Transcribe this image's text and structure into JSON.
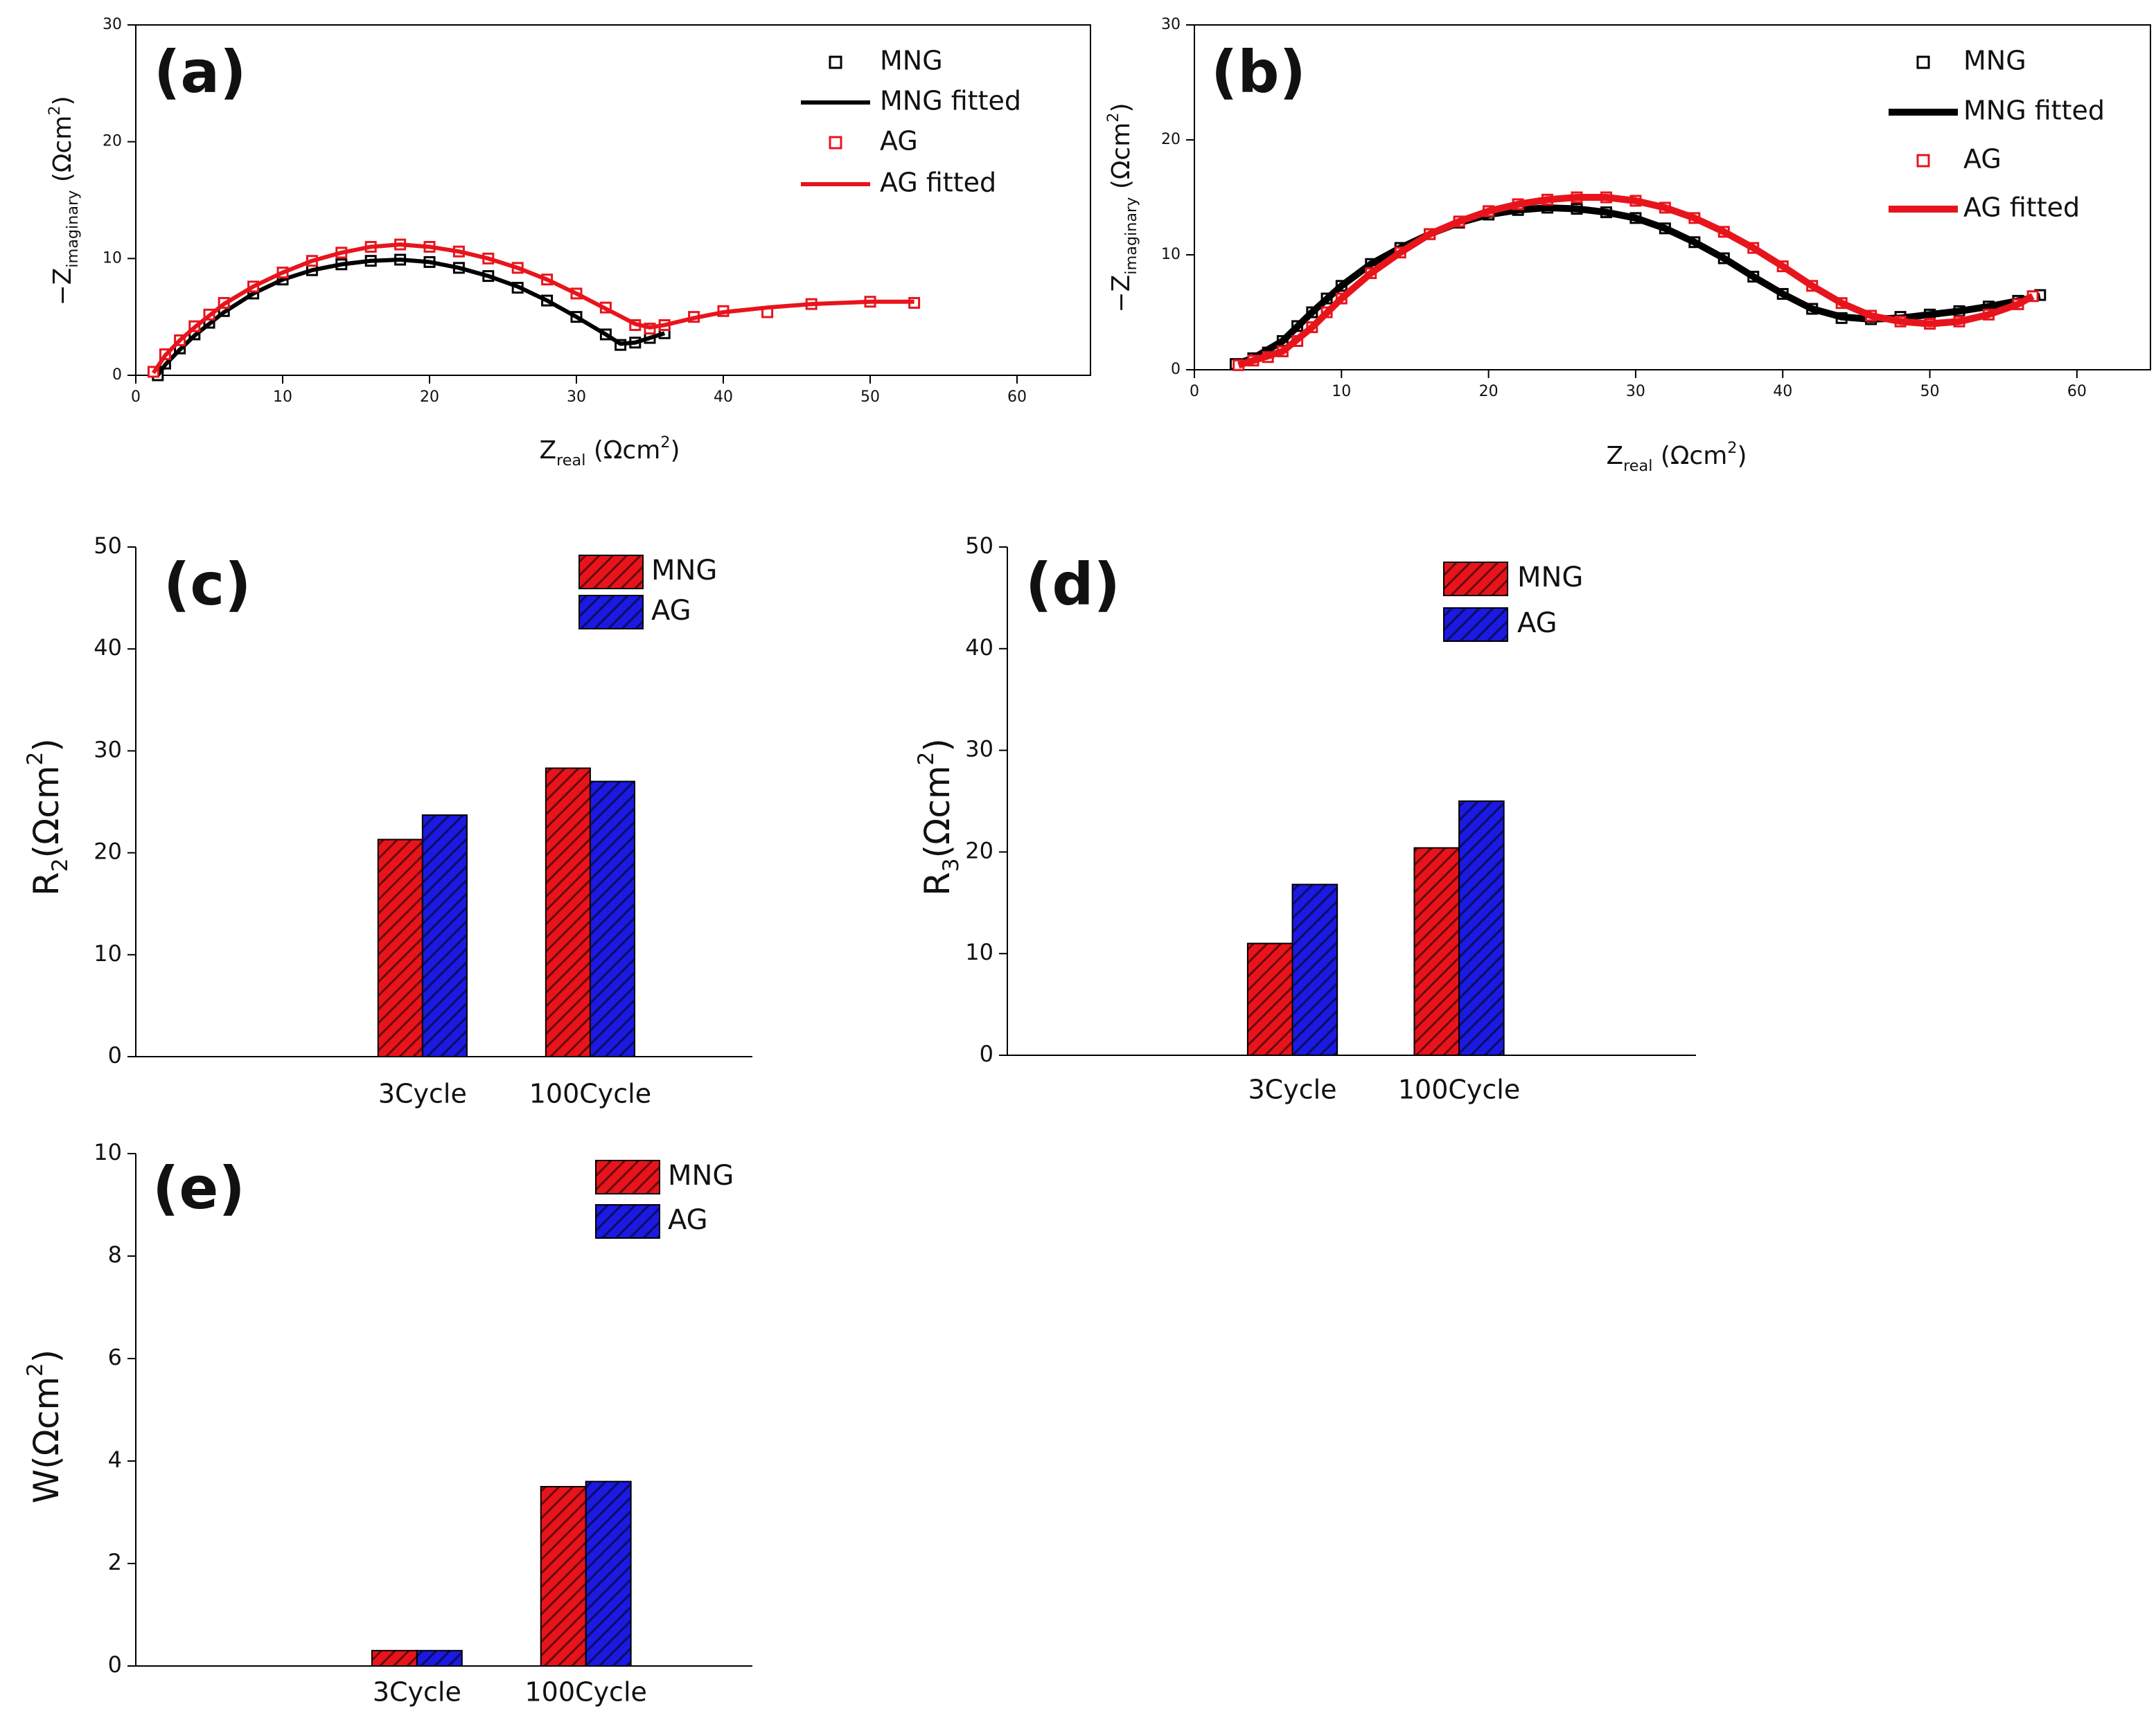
{
  "chart_data": [
    {
      "type": "scatter",
      "panel_label": "(a)",
      "xlabel": [
        {
          "text": "Z"
        },
        {
          "text": "real",
          "script": "sub"
        },
        {
          "text": " (Ωcm"
        },
        {
          "text": "2",
          "script": "super"
        },
        {
          "text": ")"
        }
      ],
      "ylabel": [
        {
          "text": "−Z"
        },
        {
          "text": "imaginary",
          "script": "sub"
        },
        {
          "text": " (Ωcm"
        },
        {
          "text": "2",
          "script": "super"
        },
        {
          "text": ")"
        }
      ],
      "xlim": [
        0,
        65
      ],
      "xticks": [
        0,
        10,
        20,
        30,
        40,
        50,
        60
      ],
      "ylim": [
        0,
        30
      ],
      "yticks": [
        0,
        10,
        20,
        30
      ],
      "series": [
        {
          "name": "MNG",
          "style": "markers",
          "color": "#000000",
          "x": [
            1.5,
            2,
            3,
            4,
            5,
            6,
            8,
            10,
            12,
            14,
            16,
            18,
            20,
            22,
            24,
            26,
            28,
            30,
            32,
            33,
            34,
            35,
            36
          ],
          "values": [
            0,
            1,
            2.3,
            3.5,
            4.5,
            5.5,
            7,
            8.2,
            9,
            9.5,
            9.8,
            9.9,
            9.7,
            9.2,
            8.5,
            7.5,
            6.4,
            5,
            3.5,
            2.6,
            2.8,
            3.2,
            3.6
          ]
        },
        {
          "name": "MNG fitted",
          "style": "line",
          "color": "#000000",
          "x": [
            1.5,
            2,
            3,
            4,
            6,
            8,
            10,
            12,
            14,
            16,
            18,
            20,
            22,
            24,
            26,
            28,
            30,
            32,
            33,
            34,
            36
          ],
          "values": [
            0,
            0.9,
            2.2,
            3.4,
            5.4,
            7,
            8.2,
            9,
            9.5,
            9.8,
            9.9,
            9.7,
            9.2,
            8.5,
            7.6,
            6.4,
            5,
            3.5,
            2.7,
            2.8,
            3.6
          ]
        },
        {
          "name": "AG",
          "style": "markers",
          "color": "#e8141c",
          "x": [
            1.2,
            2,
            3,
            4,
            5,
            6,
            8,
            10,
            12,
            14,
            16,
            18,
            20,
            22,
            24,
            26,
            28,
            30,
            32,
            34,
            35,
            36,
            38,
            40,
            43,
            46,
            50,
            53
          ],
          "values": [
            0.3,
            1.8,
            3,
            4.2,
            5.2,
            6.2,
            7.6,
            8.8,
            9.8,
            10.5,
            11,
            11.2,
            11,
            10.6,
            10,
            9.2,
            8.2,
            7,
            5.8,
            4.3,
            4,
            4.3,
            5,
            5.5,
            5.4,
            6.1,
            6.3,
            6.2
          ]
        },
        {
          "name": "AG fitted",
          "style": "line",
          "color": "#e8141c",
          "x": [
            1.2,
            2,
            3,
            4,
            6,
            8,
            10,
            12,
            14,
            16,
            18,
            20,
            22,
            24,
            26,
            28,
            30,
            32,
            34,
            35,
            36,
            38,
            40,
            43,
            46,
            50,
            53
          ],
          "values": [
            0.2,
            1.7,
            3,
            4.1,
            6.1,
            7.6,
            8.8,
            9.8,
            10.5,
            11,
            11.2,
            11,
            10.6,
            10,
            9.2,
            8.2,
            7,
            5.7,
            4.4,
            4.1,
            4.3,
            4.9,
            5.4,
            5.8,
            6.1,
            6.3,
            6.3
          ]
        }
      ]
    },
    {
      "type": "scatter",
      "panel_label": "(b)",
      "xlabel": [
        {
          "text": "Z"
        },
        {
          "text": "real",
          "script": "sub"
        },
        {
          "text": " (Ωcm"
        },
        {
          "text": "2",
          "script": "super"
        },
        {
          "text": ")"
        }
      ],
      "ylabel": [
        {
          "text": "−Z"
        },
        {
          "text": "imaginary",
          "script": "sub"
        },
        {
          "text": " (Ωcm"
        },
        {
          "text": "2",
          "script": "super"
        },
        {
          "text": ")"
        }
      ],
      "xlim": [
        0,
        65
      ],
      "xticks": [
        0,
        10,
        20,
        30,
        40,
        50,
        60
      ],
      "ylim": [
        0,
        30
      ],
      "yticks": [
        0,
        10,
        20,
        30
      ],
      "series": [
        {
          "name": "MNG",
          "style": "markers",
          "color": "#000000",
          "x": [
            2.8,
            4,
            5,
            6,
            7,
            8,
            9,
            10,
            12,
            14,
            16,
            18,
            20,
            22,
            24,
            26,
            28,
            30,
            32,
            34,
            36,
            38,
            40,
            42,
            44,
            46,
            48,
            50,
            52,
            54,
            56,
            57.5
          ],
          "values": [
            0.5,
            1,
            1.5,
            2.5,
            3.8,
            5,
            6.2,
            7.3,
            9.2,
            10.6,
            11.8,
            12.8,
            13.5,
            13.9,
            14.1,
            14,
            13.7,
            13.2,
            12.3,
            11.1,
            9.7,
            8.1,
            6.6,
            5.3,
            4.5,
            4.4,
            4.6,
            4.8,
            5.1,
            5.5,
            6,
            6.5
          ]
        },
        {
          "name": "MNG fitted",
          "style": "line",
          "color": "#000000",
          "x": [
            2.8,
            4,
            6,
            8,
            10,
            12,
            14,
            16,
            18,
            20,
            22,
            24,
            26,
            28,
            30,
            32,
            34,
            36,
            38,
            40,
            42,
            44,
            46,
            48,
            50,
            52,
            54,
            56,
            57.5
          ],
          "values": [
            0.5,
            1,
            2.5,
            5,
            7.3,
            9.2,
            10.6,
            11.8,
            12.8,
            13.5,
            13.9,
            14.1,
            14,
            13.7,
            13.2,
            12.3,
            11.1,
            9.7,
            8.1,
            6.6,
            5.3,
            4.6,
            4.4,
            4.5,
            4.8,
            5.1,
            5.5,
            6,
            6.4
          ]
        },
        {
          "name": "AG",
          "style": "markers",
          "color": "#e8141c",
          "x": [
            3,
            4,
            5,
            6,
            7,
            8,
            9,
            10,
            12,
            14,
            16,
            18,
            20,
            22,
            24,
            26,
            28,
            30,
            32,
            34,
            36,
            38,
            40,
            42,
            44,
            46,
            48,
            50,
            52,
            54,
            56,
            57
          ],
          "values": [
            0.4,
            0.8,
            1.1,
            1.6,
            2.5,
            3.7,
            5,
            6.2,
            8.4,
            10.2,
            11.8,
            12.9,
            13.8,
            14.4,
            14.8,
            15,
            15,
            14.7,
            14.1,
            13.2,
            12,
            10.6,
            9,
            7.3,
            5.8,
            4.7,
            4.2,
            4,
            4.2,
            4.8,
            5.7,
            6.4
          ]
        },
        {
          "name": "AG fitted",
          "style": "line",
          "color": "#e8141c",
          "x": [
            3,
            4,
            6,
            8,
            10,
            12,
            14,
            16,
            18,
            20,
            22,
            24,
            26,
            28,
            30,
            32,
            34,
            36,
            38,
            40,
            42,
            44,
            46,
            48,
            50,
            52,
            54,
            56,
            57
          ],
          "values": [
            0.4,
            0.8,
            1.6,
            3.7,
            6.2,
            8.4,
            10.2,
            11.8,
            12.9,
            13.8,
            14.4,
            14.8,
            15,
            15,
            14.7,
            14.1,
            13.2,
            12,
            10.6,
            9,
            7.3,
            5.8,
            4.7,
            4.2,
            4,
            4.2,
            4.8,
            5.7,
            6.4
          ]
        }
      ]
    },
    {
      "type": "bar",
      "panel_label": "(c)",
      "ylabel": [
        {
          "text": "R"
        },
        {
          "text": "2",
          "script": "sub"
        },
        {
          "text": "(Ωcm"
        },
        {
          "text": "2",
          "script": "super"
        },
        {
          "text": ")"
        }
      ],
      "categories": [
        "3Cycle",
        "100Cycle"
      ],
      "ylim": [
        0,
        50
      ],
      "yticks": [
        0,
        10,
        20,
        30,
        40,
        50
      ],
      "series": [
        {
          "name": "MNG",
          "color": "#e8141c",
          "values": [
            21.3,
            28.3
          ]
        },
        {
          "name": "AG",
          "color": "#1a1ae0",
          "values": [
            23.7,
            27
          ]
        }
      ]
    },
    {
      "type": "bar",
      "panel_label": "(d)",
      "ylabel": [
        {
          "text": "R"
        },
        {
          "text": "3",
          "script": "sub"
        },
        {
          "text": "(Ωcm"
        },
        {
          "text": "2",
          "script": "super"
        },
        {
          "text": ")"
        }
      ],
      "categories": [
        "3Cycle",
        "100Cycle"
      ],
      "ylim": [
        0,
        50
      ],
      "yticks": [
        0,
        10,
        20,
        30,
        40,
        50
      ],
      "series": [
        {
          "name": "MNG",
          "color": "#e8141c",
          "values": [
            11,
            20.4
          ]
        },
        {
          "name": "AG",
          "color": "#1a1ae0",
          "values": [
            16.8,
            25
          ]
        }
      ]
    },
    {
      "type": "bar",
      "panel_label": "(e)",
      "ylabel": [
        {
          "text": "W(Ωcm"
        },
        {
          "text": "2",
          "script": "super"
        },
        {
          "text": ")"
        }
      ],
      "categories": [
        "3Cycle",
        "100Cycle"
      ],
      "ylim": [
        0,
        10
      ],
      "yticks": [
        0,
        2,
        4,
        6,
        8,
        10
      ],
      "series": [
        {
          "name": "MNG",
          "color": "#e8141c",
          "values": [
            0.3,
            3.5
          ]
        },
        {
          "name": "AG",
          "color": "#1a1ae0",
          "values": [
            0.3,
            3.6
          ]
        }
      ]
    }
  ]
}
